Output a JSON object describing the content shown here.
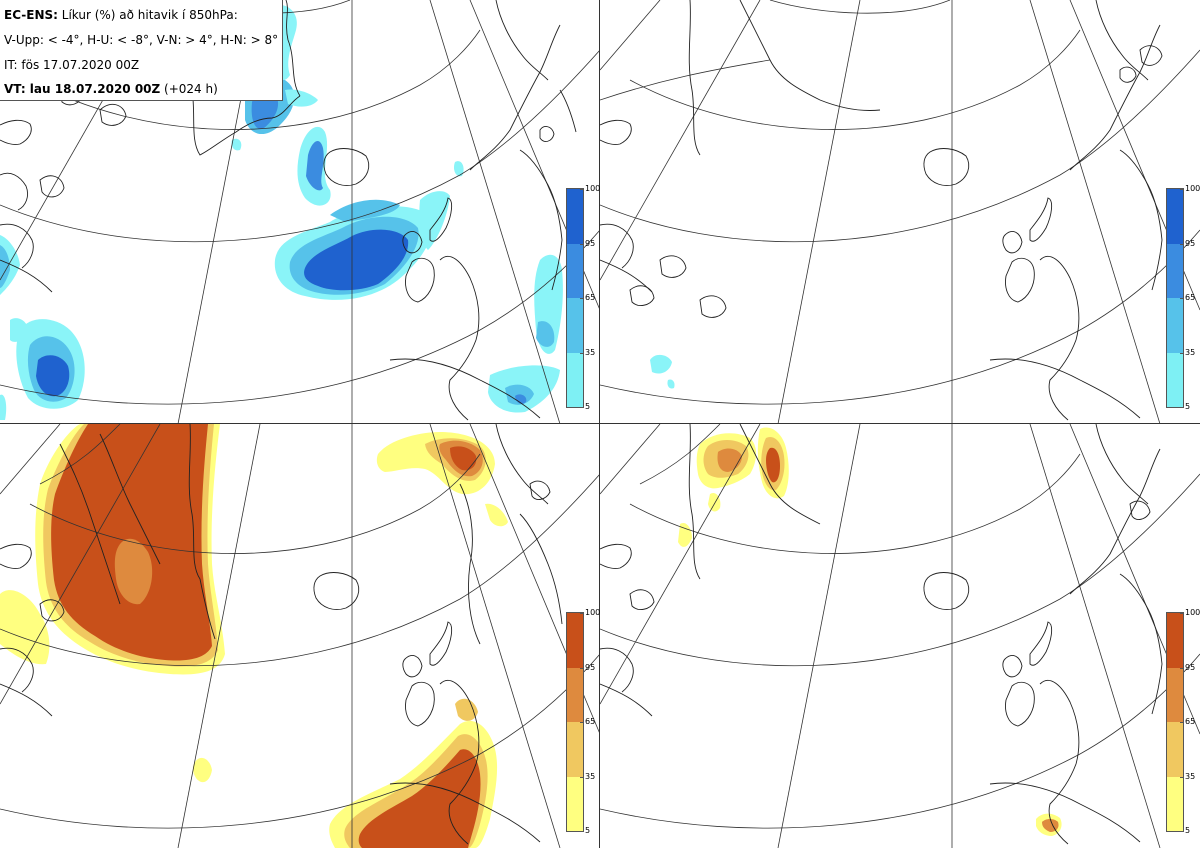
{
  "info": {
    "line1_bold": "EC-ENS:",
    "line1_rest": " Líkur (%) að hitavik í 850hPa:",
    "line2": "V-Upp: < -4°, H-U: < -8°, V-N: > 4°, H-N: > 8°",
    "line3": "IT: fös 17.07.2020 00Z",
    "line4_bold": "VT: lau 18.07.2020 00Z",
    "line4_rest": " (+024 h)"
  },
  "colorbar_cold": {
    "labels": [
      "100",
      "95",
      "65",
      "35",
      "5"
    ],
    "colors": [
      "#1f62cf",
      "#3b8ce0",
      "#56c2ea",
      "#7ef0f4"
    ]
  },
  "colorbar_warm": {
    "labels": [
      "100",
      "95",
      "65",
      "35",
      "5"
    ],
    "colors": [
      "#c8501a",
      "#de8a3e",
      "#f0c860",
      "#ffff80"
    ]
  },
  "colors": {
    "cold_light": "#8af4f8",
    "cold_mid": "#56c2ea",
    "cold_dark": "#3b8ce0",
    "cold_core": "#1f62cf",
    "warm_light": "#ffff80",
    "warm_mid": "#f0c860",
    "warm_dark": "#de8a3e",
    "warm_core": "#c8501a",
    "coast": "#222222",
    "grid": "#333333"
  }
}
